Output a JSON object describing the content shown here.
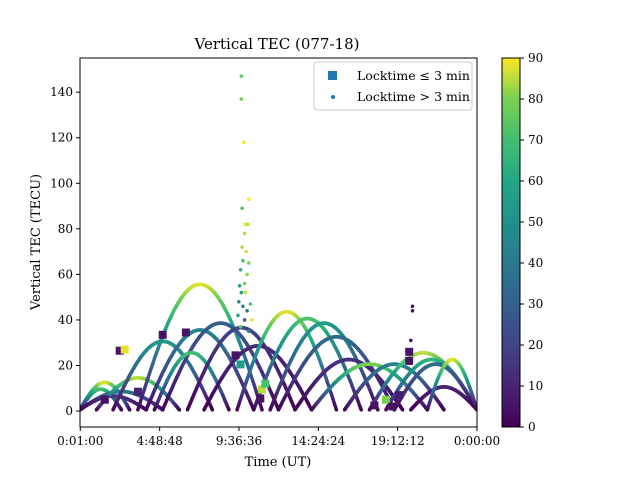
{
  "chart_data": {
    "type": "scatter",
    "title": "Vertical TEC (077-18)",
    "xlabel": "Time (UT)",
    "ylabel": "Vertical TEC (TECU)",
    "xlim": [
      0,
      24
    ],
    "ylim": [
      -7,
      155
    ],
    "x_ticks": [
      {
        "value": 0.0167,
        "label": "0:01:00"
      },
      {
        "value": 4.8133,
        "label": "4:48:48"
      },
      {
        "value": 9.61,
        "label": "9:36:36"
      },
      {
        "value": 14.4067,
        "label": "14:24:24"
      },
      {
        "value": 19.2033,
        "label": "19:12:12"
      },
      {
        "value": 24.0,
        "label": "0:00:00"
      }
    ],
    "y_ticks": [
      0,
      20,
      40,
      60,
      80,
      100,
      120,
      140
    ],
    "colorbar": {
      "colormap": "viridis",
      "range": [
        0,
        90
      ],
      "ticks": [
        0,
        10,
        20,
        30,
        40,
        50,
        60,
        70,
        80,
        90
      ]
    },
    "legend": {
      "placement": "top-right",
      "entries": [
        {
          "marker": "square",
          "label": "Locktime ≤ 3 min",
          "color": "#1f77b4"
        },
        {
          "marker": "dot",
          "label": "Locktime > 3 min",
          "color": "#1f77b4"
        }
      ]
    },
    "arcs": [
      {
        "t0": 0.0,
        "t1": 3.0,
        "peak": 12,
        "elev": 88
      },
      {
        "t0": 0.0,
        "t1": 2.5,
        "peak": 9,
        "elev": 70
      },
      {
        "t0": 0.0,
        "t1": 5.0,
        "peak": 8,
        "elev": 40
      },
      {
        "t0": 0.0,
        "t1": 4.0,
        "peak": 6,
        "elev": 15
      },
      {
        "t0": 1.0,
        "t1": 6.0,
        "peak": 14,
        "elev": 85
      },
      {
        "t0": 2.0,
        "t1": 8.0,
        "peak": 30,
        "elev": 55
      },
      {
        "t0": 3.5,
        "t1": 11.0,
        "peak": 55,
        "elev": 88
      },
      {
        "t0": 4.0,
        "t1": 10.5,
        "peak": 35,
        "elev": 45
      },
      {
        "t0": 5.0,
        "t1": 12.0,
        "peak": 38,
        "elev": 30
      },
      {
        "t0": 4.5,
        "t1": 9.0,
        "peak": 25,
        "elev": 70
      },
      {
        "t0": 6.5,
        "t1": 13.0,
        "peak": 36,
        "elev": 20
      },
      {
        "t0": 7.5,
        "t1": 14.0,
        "peak": 28,
        "elev": 12
      },
      {
        "t0": 9.5,
        "t1": 15.5,
        "peak": 43,
        "elev": 88
      },
      {
        "t0": 10.5,
        "t1": 17.0,
        "peak": 40,
        "elev": 72
      },
      {
        "t0": 11.5,
        "t1": 18.0,
        "peak": 38,
        "elev": 55
      },
      {
        "t0": 12.0,
        "t1": 19.0,
        "peak": 32,
        "elev": 35
      },
      {
        "t0": 13.0,
        "t1": 19.5,
        "peak": 22,
        "elev": 15
      },
      {
        "t0": 14.0,
        "t1": 21.0,
        "peak": 20,
        "elev": 80
      },
      {
        "t0": 16.0,
        "t1": 22.0,
        "peak": 20,
        "elev": 45
      },
      {
        "t0": 17.5,
        "t1": 24.0,
        "peak": 25,
        "elev": 85
      },
      {
        "t0": 18.5,
        "t1": 24.0,
        "peak": 22,
        "elev": 65
      },
      {
        "t0": 19.0,
        "t1": 24.0,
        "peak": 20,
        "elev": 35
      },
      {
        "t0": 20.0,
        "t1": 24.0,
        "peak": 10,
        "elev": 10
      },
      {
        "t0": 21.0,
        "t1": 24.0,
        "peak": 22,
        "elev": 88
      }
    ],
    "scatter_points": [
      {
        "x": 9.75,
        "y": 147,
        "elev": 75
      },
      {
        "x": 9.75,
        "y": 137,
        "elev": 80
      },
      {
        "x": 9.9,
        "y": 118,
        "elev": 90
      },
      {
        "x": 10.2,
        "y": 93,
        "elev": 90
      },
      {
        "x": 9.8,
        "y": 89,
        "elev": 72
      },
      {
        "x": 10.0,
        "y": 82,
        "elev": 88
      },
      {
        "x": 10.15,
        "y": 82,
        "elev": 86
      },
      {
        "x": 9.95,
        "y": 78,
        "elev": 85
      },
      {
        "x": 9.8,
        "y": 72,
        "elev": 84
      },
      {
        "x": 10.05,
        "y": 70,
        "elev": 88
      },
      {
        "x": 9.85,
        "y": 66,
        "elev": 70
      },
      {
        "x": 10.2,
        "y": 65,
        "elev": 80
      },
      {
        "x": 9.7,
        "y": 62,
        "elev": 65
      },
      {
        "x": 10.1,
        "y": 60,
        "elev": 82
      },
      {
        "x": 9.65,
        "y": 55,
        "elev": 60
      },
      {
        "x": 9.95,
        "y": 56,
        "elev": 78
      },
      {
        "x": 9.75,
        "y": 52,
        "elev": 55
      },
      {
        "x": 10.0,
        "y": 52,
        "elev": 86
      },
      {
        "x": 9.6,
        "y": 48,
        "elev": 50
      },
      {
        "x": 9.85,
        "y": 46,
        "elev": 45
      },
      {
        "x": 10.3,
        "y": 47,
        "elev": 72
      },
      {
        "x": 10.1,
        "y": 44,
        "elev": 38
      },
      {
        "x": 9.55,
        "y": 42,
        "elev": 60
      },
      {
        "x": 9.95,
        "y": 40,
        "elev": 30
      },
      {
        "x": 10.4,
        "y": 40,
        "elev": 88
      },
      {
        "x": 9.7,
        "y": 37,
        "elev": 75
      },
      {
        "x": 10.2,
        "y": 35,
        "elev": 50
      },
      {
        "x": 20.1,
        "y": 46,
        "elev": 5
      },
      {
        "x": 20.1,
        "y": 44,
        "elev": 5
      },
      {
        "x": 20.0,
        "y": 31,
        "elev": 5
      }
    ],
    "locktime_squares": [
      {
        "x": 2.4,
        "y": 26.5,
        "elev": 5
      },
      {
        "x": 2.7,
        "y": 27,
        "elev": 88
      },
      {
        "x": 1.5,
        "y": 5,
        "elev": 5
      },
      {
        "x": 3.5,
        "y": 8.5,
        "elev": 10
      },
      {
        "x": 5.0,
        "y": 33.5,
        "elev": 5
      },
      {
        "x": 6.4,
        "y": 34.5,
        "elev": 5
      },
      {
        "x": 9.4,
        "y": 24.5,
        "elev": 5
      },
      {
        "x": 9.7,
        "y": 20.5,
        "elev": 55
      },
      {
        "x": 11.0,
        "y": 9.5,
        "elev": 85
      },
      {
        "x": 11.2,
        "y": 12,
        "elev": 70
      },
      {
        "x": 10.9,
        "y": 5.5,
        "elev": 5
      },
      {
        "x": 17.8,
        "y": 2.5,
        "elev": 5
      },
      {
        "x": 18.5,
        "y": 5,
        "elev": 80
      },
      {
        "x": 19.3,
        "y": 7,
        "elev": 8
      },
      {
        "x": 19.9,
        "y": 26,
        "elev": 5
      },
      {
        "x": 19.9,
        "y": 22,
        "elev": 5
      },
      {
        "x": 18.9,
        "y": 2,
        "elev": 5
      }
    ]
  }
}
